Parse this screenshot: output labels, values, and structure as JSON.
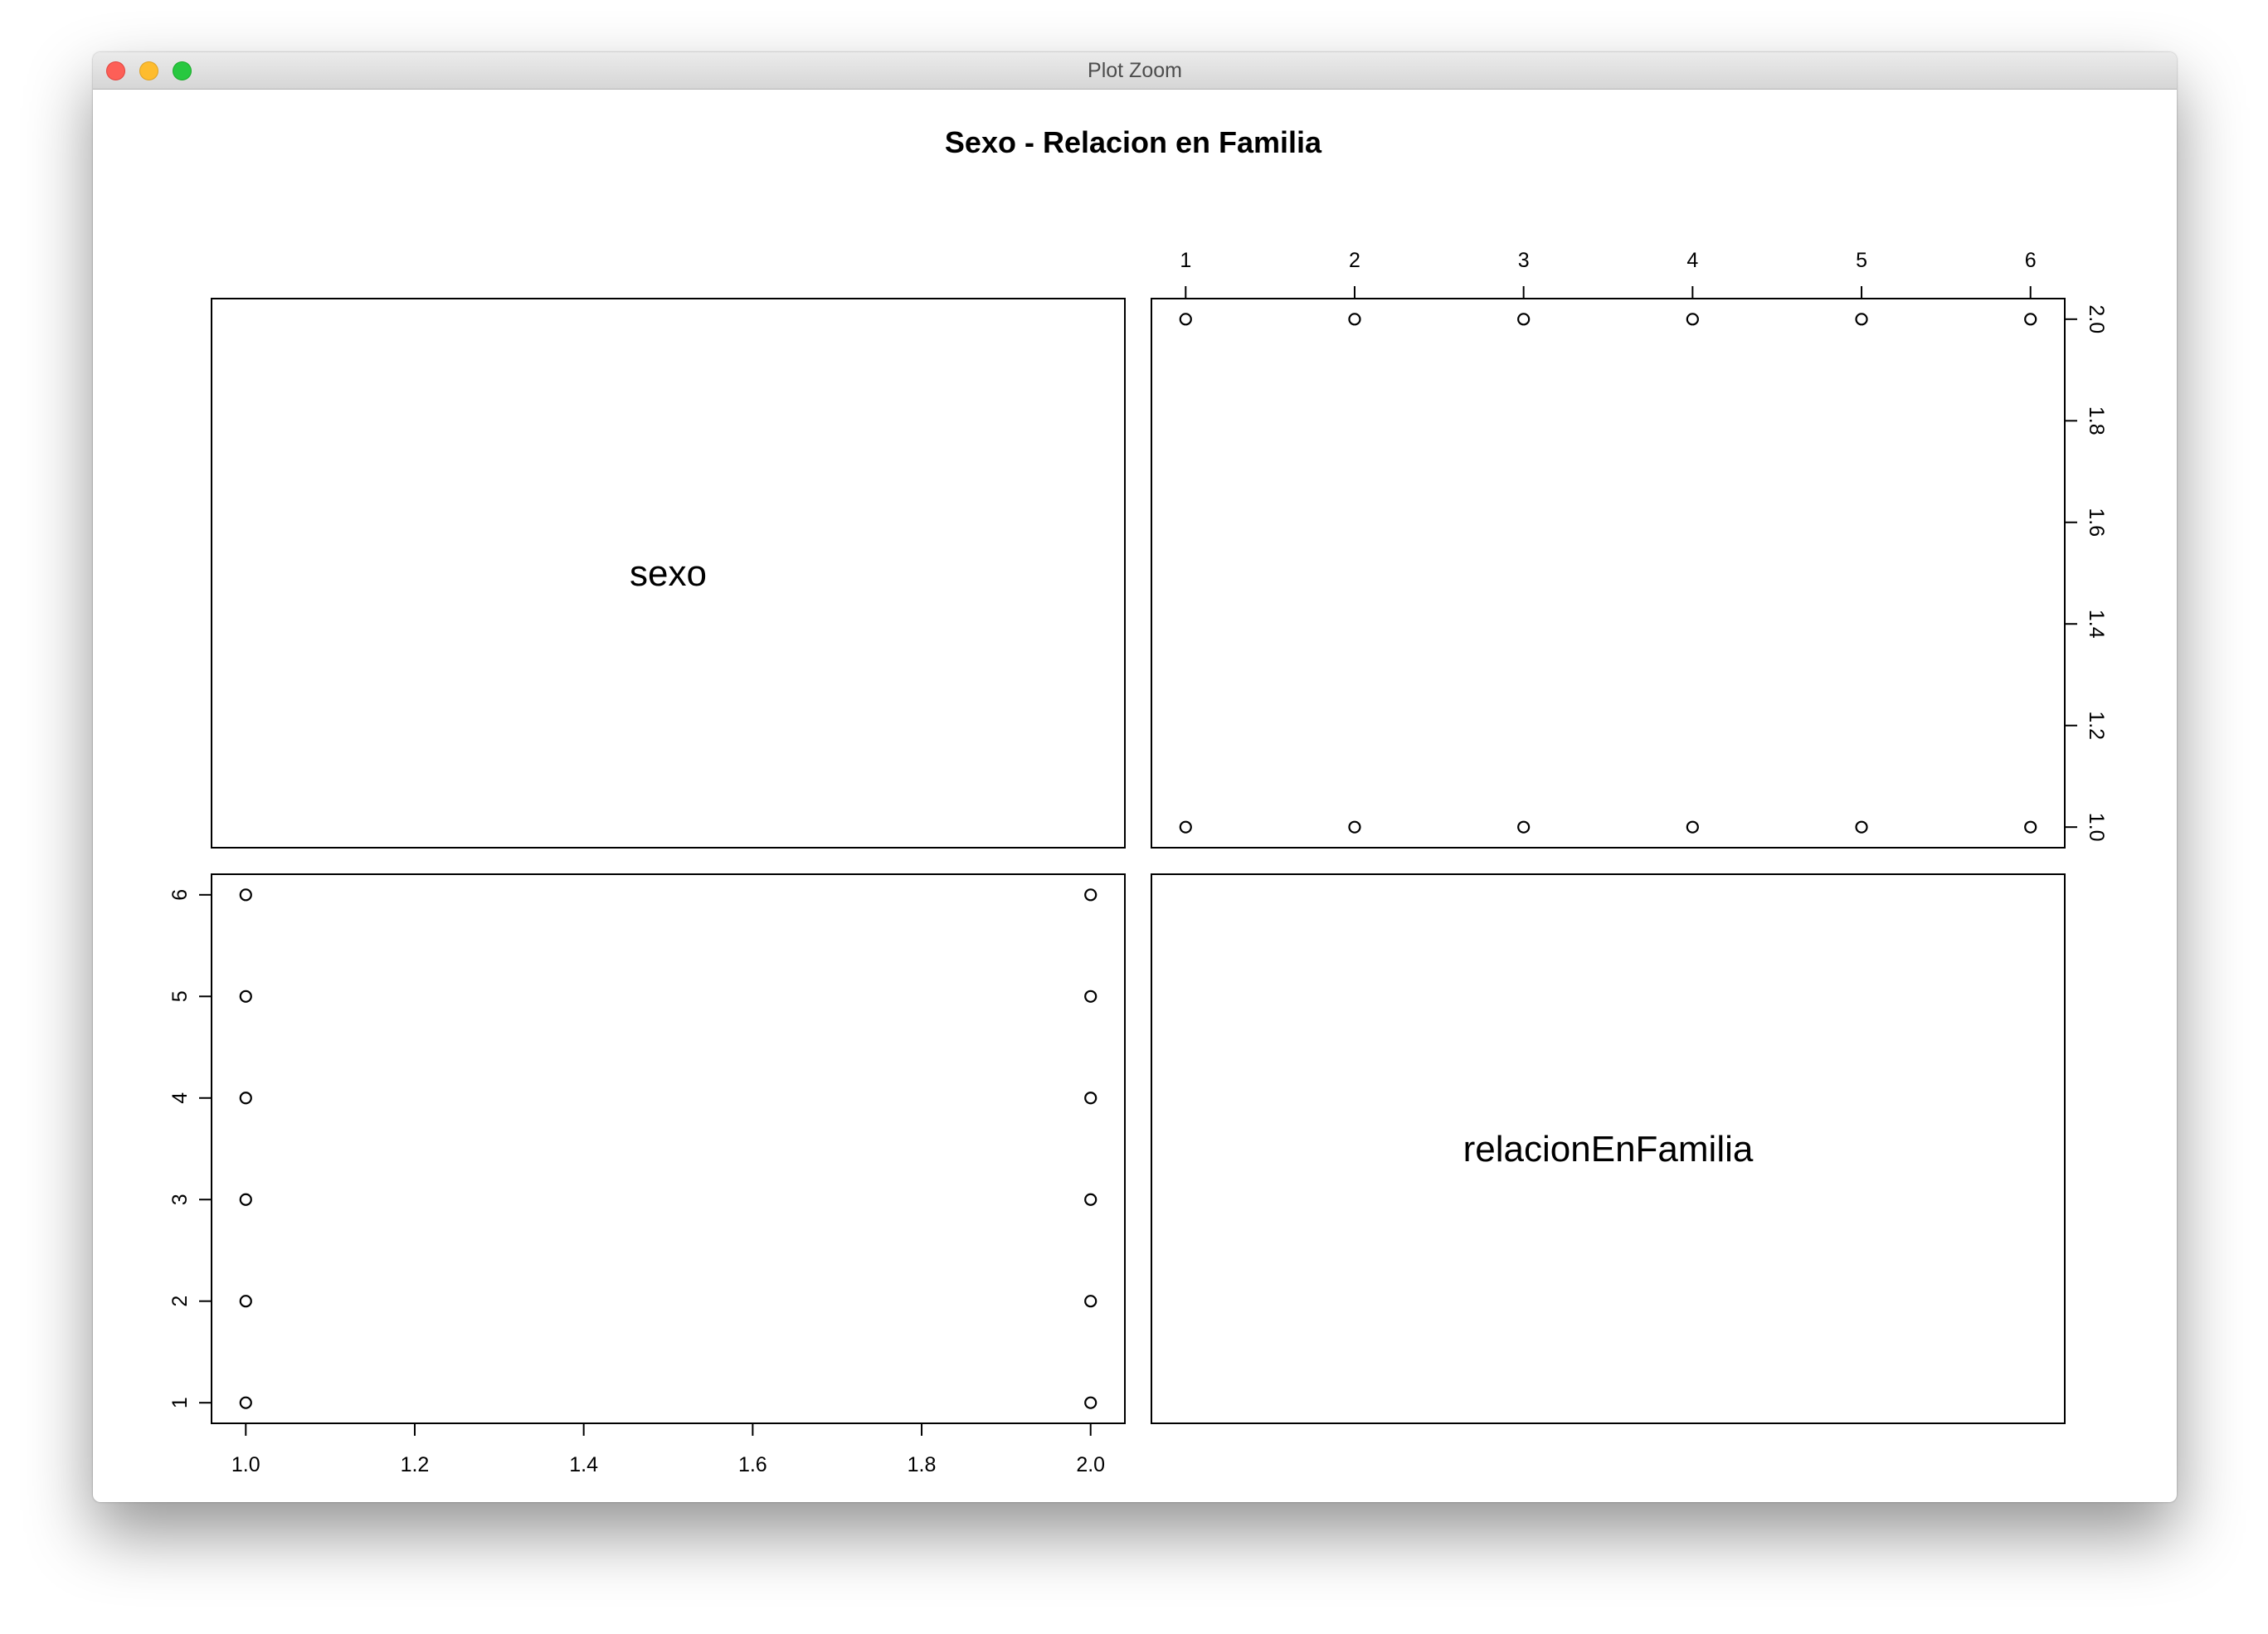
{
  "window": {
    "title": "Plot Zoom"
  },
  "chart_data": {
    "type": "scatter",
    "plot_kind": "pairs-matrix",
    "title": "Sexo - Relacion en Familia",
    "variables": [
      "sexo",
      "relacionEnFamilia"
    ],
    "ranges": {
      "sexo": [
        1,
        2
      ],
      "relacionEnFamilia": [
        1,
        6
      ]
    },
    "ticks": {
      "sexo": [
        "1.0",
        "1.2",
        "1.4",
        "1.6",
        "1.8",
        "2.0"
      ],
      "relacionEnFamilia": [
        "1",
        "2",
        "3",
        "4",
        "5",
        "6"
      ]
    },
    "points": [
      {
        "sexo": 1,
        "relacionEnFamilia": 1
      },
      {
        "sexo": 1,
        "relacionEnFamilia": 2
      },
      {
        "sexo": 1,
        "relacionEnFamilia": 3
      },
      {
        "sexo": 1,
        "relacionEnFamilia": 4
      },
      {
        "sexo": 1,
        "relacionEnFamilia": 5
      },
      {
        "sexo": 1,
        "relacionEnFamilia": 6
      },
      {
        "sexo": 2,
        "relacionEnFamilia": 1
      },
      {
        "sexo": 2,
        "relacionEnFamilia": 2
      },
      {
        "sexo": 2,
        "relacionEnFamilia": 3
      },
      {
        "sexo": 2,
        "relacionEnFamilia": 4
      },
      {
        "sexo": 2,
        "relacionEnFamilia": 5
      },
      {
        "sexo": 2,
        "relacionEnFamilia": 6
      }
    ],
    "grid": false,
    "legend": "none",
    "point_color": "#000000"
  }
}
